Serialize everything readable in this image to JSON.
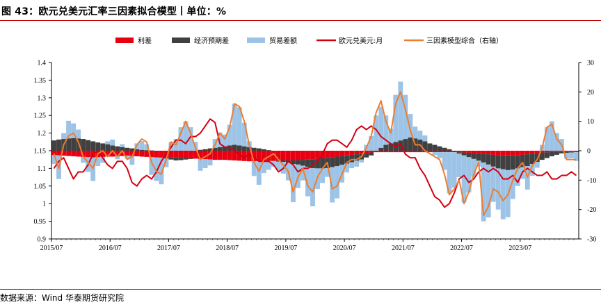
{
  "header": {
    "title": "图 43：欧元兑美元汇率三因素拟合模型丨单位：%"
  },
  "footer": {
    "source": "数据来源：Wind 华泰期货研究院"
  },
  "colors": {
    "rate_diff": "#e60012",
    "expected_diff": "#404040",
    "trade_balance": "#9dc3e6",
    "eurusd": "#d40010",
    "model": "#ed7d31",
    "title_rule": "#c00000"
  },
  "chart_data": {
    "type": "bar+line",
    "title": "",
    "legend_position": "top",
    "legend": [
      "利差",
      "经济预期差",
      "贸易差额",
      "欧元兑美元:月",
      "三因素模型综合（右轴）"
    ],
    "x_tick_labels": [
      "2015/07",
      "2016/07",
      "2017/07",
      "2018/07",
      "2019/07",
      "2020/07",
      "2021/07",
      "2022/07",
      "2023/07"
    ],
    "x_start": "2015/07",
    "x_end": "2024/06",
    "left_axis": {
      "min": 0.9,
      "max": 1.4,
      "ticks": [
        0.9,
        0.95,
        1,
        1.05,
        1.1,
        1.15,
        1.2,
        1.25,
        1.3,
        1.35,
        1.4
      ],
      "tick_labels": [
        "0.9",
        "0.95",
        "1",
        "1.05",
        "1.1",
        "1.15",
        "1.2",
        "1.25",
        "1.3",
        "1.35",
        "1.4"
      ]
    },
    "right_axis": {
      "min": -30,
      "max": 30,
      "ticks": [
        -30,
        -20,
        -10,
        0,
        10,
        20,
        30
      ],
      "tick_labels": [
        "-30",
        "-20",
        "-10",
        "0",
        "10",
        "20",
        "30"
      ]
    },
    "series": [
      {
        "name": "利差",
        "kind": "bar",
        "axis": "right",
        "color": "#e60012",
        "values": [
          -1.5,
          -1.6,
          -1.7,
          -1.8,
          -1.9,
          -2,
          -2.1,
          -2.2,
          -2.3,
          -2.2,
          -2.1,
          -2,
          -2,
          -1.9,
          -1.8,
          -1.7,
          -1.8,
          -1.9,
          -2,
          -2.1,
          -2.2,
          -2.3,
          -2.2,
          -2.1,
          -2.2,
          -2.3,
          -2.4,
          -2.5,
          -2.6,
          -2.7,
          -2.8,
          -2.9,
          -3,
          -3.1,
          -3.1,
          -3.1,
          -3.2,
          -3.3,
          -3.4,
          -3.5,
          -3.6,
          -3.6,
          -3.6,
          -3.6,
          -3.5,
          -3.5,
          -3.4,
          -3.3,
          -3.3,
          -3.3,
          -3.2,
          -3.1,
          -3,
          -2.9,
          -2.8,
          -2.6,
          -2.4,
          -2.2,
          -2,
          -1.8,
          -1.6,
          -1.4,
          -1.2,
          -1,
          -0.8,
          -0.6,
          -0.5,
          -0.5,
          -0.5,
          -0.5,
          -0.5,
          -0.5,
          -0.5,
          -0.5,
          -0.5,
          -0.5,
          -0.5,
          -0.5,
          -0.5,
          -0.5,
          -0.5,
          -0.5,
          -0.5,
          -0.5,
          -0.6,
          -0.7,
          -0.8,
          -0.9,
          -1,
          -1.2,
          -1.4,
          -1.5,
          -1.5,
          -1.6,
          -1.6,
          -1.5,
          -1.4,
          -1.2,
          -1,
          -0.8,
          -0.6,
          -0.5,
          -0.4,
          -0.4,
          -0.4,
          -0.4,
          -0.4,
          -0.4
        ]
      },
      {
        "name": "经济预期差",
        "kind": "bar",
        "axis": "right",
        "color": "#404040",
        "values": [
          3.5,
          3.8,
          4,
          4.2,
          4.3,
          4.2,
          4,
          3.6,
          3.2,
          2.8,
          2.5,
          2.2,
          1.8,
          1.5,
          1.2,
          1,
          0.8,
          0.5,
          0.3,
          0.2,
          0.1,
          0,
          -0.2,
          -0.5,
          -0.8,
          -1,
          -0.8,
          -0.5,
          -0.2,
          0,
          0.3,
          0.5,
          0.8,
          1,
          1.2,
          1.5,
          1.8,
          2,
          1.8,
          1.5,
          1.2,
          1,
          0.8,
          0.5,
          0.2,
          0,
          -0.3,
          -0.5,
          -0.8,
          -1.2,
          -1.5,
          -2,
          -2.5,
          -3,
          -3.2,
          -3.4,
          -3.5,
          -3.4,
          -3.2,
          -3,
          -2.8,
          -2.5,
          -2.2,
          -2,
          -1.5,
          -1,
          0,
          1,
          2,
          2.5,
          3,
          3.5,
          4,
          4.5,
          4.2,
          3.8,
          3.2,
          2.5,
          2,
          1.5,
          1,
          0.5,
          0,
          -0.5,
          -1,
          -1.5,
          -2,
          -2.5,
          -3,
          -3.5,
          -4,
          -4.5,
          -4.8,
          -5,
          -4.8,
          -4.5,
          -4.2,
          -4,
          -3.5,
          -3,
          -2.5,
          -2,
          -1.5,
          -1,
          -0.5,
          -0.3,
          -0.2,
          -0.1
        ]
      },
      {
        "name": "贸易差额",
        "kind": "bar",
        "axis": "right",
        "color": "#9dc3e6",
        "values": [
          -3,
          -8,
          2,
          6,
          5,
          3,
          -2,
          -5,
          -8,
          -3,
          -2,
          1,
          2,
          -1,
          1,
          -1,
          -3,
          2,
          3,
          2,
          -6,
          -8,
          -9,
          -3,
          3,
          4,
          8,
          10,
          8,
          3,
          -4,
          -3,
          -2,
          3,
          5,
          4,
          7,
          14,
          13,
          8,
          2,
          -5,
          -8,
          -4,
          -3,
          -2,
          -3,
          -4,
          -6,
          -13,
          -8,
          -5,
          -10,
          -13,
          -7,
          -5,
          -3,
          -12,
          -11,
          -6,
          -3,
          -2,
          -2,
          -1,
          2,
          5,
          12,
          14,
          10,
          5,
          16,
          20,
          15,
          8,
          4,
          3,
          2,
          0,
          -1,
          -2,
          -6,
          -14,
          -12,
          -8,
          -16,
          -12,
          -6,
          -2,
          -20,
          -18,
          -12,
          -14,
          -17,
          -16,
          -10,
          -6,
          -4,
          -8,
          -4,
          -2,
          2,
          8,
          10,
          6,
          4,
          -2,
          -2,
          -3
        ]
      },
      {
        "name": "欧元兑美元:月",
        "kind": "line",
        "axis": "left",
        "color": "#d40010",
        "x": [
          0,
          1,
          2,
          3,
          4,
          5,
          6,
          7,
          8,
          9,
          10,
          11,
          12,
          13,
          14,
          15,
          16,
          17,
          18,
          19,
          20,
          21,
          22,
          23,
          24,
          25,
          26,
          27,
          28,
          29,
          30,
          31,
          32,
          33,
          34,
          35,
          36,
          37,
          38,
          39,
          40,
          41,
          42,
          43,
          44,
          45,
          46,
          47,
          48,
          49,
          50,
          51,
          52,
          53,
          54,
          55,
          56,
          57,
          58,
          59,
          60,
          61,
          62,
          63,
          64,
          65,
          66,
          67,
          68,
          69,
          70,
          71,
          72,
          73,
          74,
          75,
          76,
          77,
          78,
          79,
          80,
          81,
          82,
          83,
          84,
          85,
          86,
          87,
          88,
          89,
          90,
          91,
          92,
          93,
          94,
          95,
          96,
          97,
          98,
          99,
          100,
          101,
          102,
          103,
          104,
          105,
          106,
          107
        ],
        "values": [
          1.1,
          1.12,
          1.13,
          1.1,
          1.07,
          1.09,
          1.09,
          1.11,
          1.14,
          1.15,
          1.13,
          1.11,
          1.1,
          1.12,
          1.12,
          1.1,
          1.06,
          1.05,
          1.07,
          1.08,
          1.07,
          1.09,
          1.12,
          1.14,
          1.16,
          1.18,
          1.18,
          1.17,
          1.19,
          1.19,
          1.2,
          1.22,
          1.24,
          1.23,
          1.17,
          1.16,
          1.16,
          1.15,
          1.14,
          1.13,
          1.14,
          1.13,
          1.12,
          1.12,
          1.12,
          1.11,
          1.09,
          1.1,
          1.12,
          1.11,
          1.09,
          1.1,
          1.1,
          1.11,
          1.12,
          1.14,
          1.17,
          1.18,
          1.18,
          1.17,
          1.16,
          1.18,
          1.21,
          1.22,
          1.21,
          1.22,
          1.21,
          1.19,
          1.18,
          1.17,
          1.16,
          1.17,
          1.14,
          1.13,
          1.13,
          1.1,
          1.08,
          1.05,
          1.02,
          1.01,
          0.99,
          1,
          1.03,
          1.07,
          1.08,
          1.06,
          1.07,
          1.09,
          1.1,
          1.09,
          1.1,
          1.09,
          1.07,
          1.07,
          1.08,
          1.06,
          1.09,
          1.1,
          1.09,
          1.08,
          1.08,
          1.09,
          1.07,
          1.07,
          1.08,
          1.08,
          1.09,
          1.08
        ]
      },
      {
        "name": "三因素模型综合（右轴）",
        "kind": "line",
        "axis": "right",
        "color": "#ed7d31",
        "values": [
          -1,
          -6,
          2,
          5,
          6,
          3,
          -2,
          -4,
          -6,
          -1,
          0,
          -2,
          0,
          -2,
          0,
          -3,
          -2,
          2,
          4,
          3,
          -4,
          -7,
          -8,
          -3,
          3,
          2,
          6,
          10,
          6,
          1,
          -3,
          -2,
          -1,
          2,
          6,
          4,
          8,
          16,
          15,
          10,
          2,
          -4,
          -7,
          -3,
          -2,
          -1,
          -3,
          -5,
          -7,
          -14,
          -9,
          -6,
          -12,
          -14,
          -9,
          -6,
          -4,
          -13,
          -12,
          -8,
          -4,
          -3,
          -3,
          -2,
          1,
          5,
          13,
          17,
          10,
          6,
          16,
          20,
          14,
          7,
          2,
          2,
          0,
          -1,
          -2,
          -3,
          -8,
          -15,
          -13,
          -10,
          -18,
          -14,
          -8,
          -4,
          -22,
          -19,
          -13,
          -14,
          -17,
          -15,
          -10,
          -6,
          -4,
          -9,
          -5,
          -3,
          1,
          8,
          9,
          4,
          2,
          -3,
          -3,
          -3
        ]
      }
    ]
  }
}
